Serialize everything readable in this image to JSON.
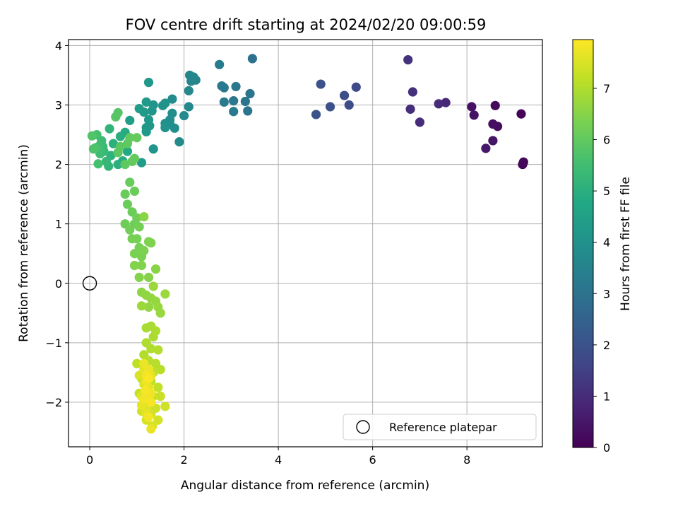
{
  "chart_data": {
    "type": "scatter",
    "title": "FOV centre drift starting at 2024/02/20 09:00:59",
    "xlabel": "Angular distance from reference (arcmin)",
    "ylabel": "Rotation from reference (arcmin)",
    "xlim": [
      -0.45,
      9.6
    ],
    "ylim": [
      -2.75,
      4.1
    ],
    "xticks": [
      0,
      2,
      4,
      6,
      8
    ],
    "yticks": [
      -2,
      -1,
      0,
      1,
      2,
      3,
      4
    ],
    "grid": true,
    "colorbar": {
      "label": "Hours from first FF file",
      "colormap": "viridis",
      "range": [
        0,
        7.95
      ],
      "ticks": [
        0,
        1,
        2,
        3,
        4,
        5,
        6,
        7
      ]
    },
    "legend": {
      "position": "lower-right",
      "entries": [
        "Reference platepar"
      ]
    },
    "reference_point": {
      "x": 0,
      "y": 0,
      "label": "Reference platepar"
    },
    "series": [
      {
        "columns": [
          "x",
          "y",
          "hours"
        ],
        "points": [
          [
            9.15,
            2.85,
            0.05
          ],
          [
            9.18,
            2.0,
            0.1
          ],
          [
            9.2,
            2.04,
            0.15
          ],
          [
            8.6,
            2.99,
            0.2
          ],
          [
            8.65,
            2.64,
            0.25
          ],
          [
            8.55,
            2.68,
            0.3
          ],
          [
            8.1,
            2.97,
            0.35
          ],
          [
            8.15,
            2.83,
            0.4
          ],
          [
            8.55,
            2.4,
            0.45
          ],
          [
            8.4,
            2.27,
            0.5
          ],
          [
            7.55,
            3.04,
            0.9
          ],
          [
            7.4,
            3.02,
            0.95
          ],
          [
            7.0,
            2.71,
            1.0
          ],
          [
            6.8,
            2.93,
            1.05
          ],
          [
            6.85,
            3.22,
            1.1
          ],
          [
            6.75,
            3.76,
            1.15
          ],
          [
            5.65,
            3.3,
            1.8
          ],
          [
            5.5,
            3.0,
            1.85
          ],
          [
            5.4,
            3.16,
            1.9
          ],
          [
            5.1,
            2.97,
            1.95
          ],
          [
            4.9,
            3.35,
            2.0
          ],
          [
            4.8,
            2.84,
            2.05
          ],
          [
            3.45,
            3.78,
            3.0
          ],
          [
            3.4,
            3.19,
            3.05
          ],
          [
            3.35,
            2.9,
            3.1
          ],
          [
            3.3,
            3.06,
            3.1
          ],
          [
            3.1,
            3.31,
            3.15
          ],
          [
            3.05,
            3.07,
            3.15
          ],
          [
            3.05,
            2.89,
            3.2
          ],
          [
            2.85,
            3.05,
            3.2
          ],
          [
            2.85,
            3.29,
            3.25
          ],
          [
            2.8,
            3.32,
            3.25
          ],
          [
            2.75,
            3.68,
            3.3
          ],
          [
            2.25,
            3.42,
            3.6
          ],
          [
            2.2,
            3.47,
            3.6
          ],
          [
            2.15,
            3.4,
            3.65
          ],
          [
            2.12,
            3.5,
            3.65
          ],
          [
            2.1,
            3.24,
            3.7
          ],
          [
            2.1,
            2.97,
            3.7
          ],
          [
            2.0,
            2.82,
            3.75
          ],
          [
            1.9,
            2.38,
            3.8
          ],
          [
            1.8,
            2.61,
            3.85
          ],
          [
            1.75,
            3.1,
            3.85
          ],
          [
            1.75,
            2.86,
            3.9
          ],
          [
            1.7,
            2.75,
            3.9
          ],
          [
            1.7,
            2.68,
            3.95
          ],
          [
            1.6,
            2.69,
            3.95
          ],
          [
            1.6,
            2.62,
            4.0
          ],
          [
            1.6,
            3.03,
            4.0
          ],
          [
            1.55,
            2.99,
            4.05
          ],
          [
            1.35,
            2.26,
            4.1
          ],
          [
            1.35,
            3.0,
            4.1
          ],
          [
            1.32,
            2.9,
            4.15
          ],
          [
            1.27,
            2.65,
            4.15
          ],
          [
            1.25,
            2.75,
            4.2
          ],
          [
            1.25,
            3.38,
            4.2
          ],
          [
            1.2,
            2.55,
            4.25
          ],
          [
            1.2,
            2.62,
            4.25
          ],
          [
            1.2,
            3.05,
            4.3
          ],
          [
            1.15,
            2.88,
            4.3
          ],
          [
            1.1,
            2.03,
            4.35
          ],
          [
            1.05,
            2.94,
            4.35
          ],
          [
            0.85,
            2.74,
            4.4
          ],
          [
            0.8,
            2.22,
            4.8
          ],
          [
            0.75,
            2.54,
            4.85
          ],
          [
            0.7,
            2.06,
            4.9
          ],
          [
            0.65,
            2.47,
            4.95
          ],
          [
            0.6,
            2.0,
            5.0
          ],
          [
            0.5,
            2.35,
            5.05
          ],
          [
            0.45,
            2.15,
            5.1
          ],
          [
            0.42,
            2.6,
            5.15
          ],
          [
            0.4,
            1.97,
            5.2
          ],
          [
            0.35,
            2.05,
            5.25
          ],
          [
            0.3,
            2.22,
            5.3
          ],
          [
            0.28,
            2.3,
            5.35
          ],
          [
            0.25,
            2.4,
            5.4
          ],
          [
            0.22,
            2.18,
            5.45
          ],
          [
            0.2,
            2.31,
            5.5
          ],
          [
            0.18,
            2.01,
            5.55
          ],
          [
            0.15,
            2.5,
            5.6
          ],
          [
            0.12,
            2.28,
            5.65
          ],
          [
            0.08,
            2.26,
            5.7
          ],
          [
            0.05,
            2.48,
            5.75
          ],
          [
            0.55,
            2.8,
            5.85
          ],
          [
            0.6,
            2.87,
            5.85
          ],
          [
            0.6,
            2.2,
            5.9
          ],
          [
            0.65,
            2.3,
            5.9
          ],
          [
            0.75,
            2.0,
            5.95
          ],
          [
            0.8,
            2.35,
            5.95
          ],
          [
            0.85,
            2.45,
            6.0
          ],
          [
            0.9,
            2.05,
            6.0
          ],
          [
            0.95,
            2.1,
            6.05
          ],
          [
            1.0,
            2.45,
            6.05
          ],
          [
            0.75,
            1.5,
            6.1
          ],
          [
            0.85,
            1.7,
            6.1
          ],
          [
            0.95,
            1.55,
            6.12
          ],
          [
            0.8,
            1.33,
            6.14
          ],
          [
            0.9,
            1.2,
            6.16
          ],
          [
            0.75,
            1.0,
            6.18
          ],
          [
            0.95,
            1.0,
            6.2
          ],
          [
            1.0,
            1.1,
            6.22
          ],
          [
            0.85,
            0.9,
            6.24
          ],
          [
            1.05,
            0.95,
            6.26
          ],
          [
            0.9,
            0.75,
            6.28
          ],
          [
            1.0,
            0.75,
            6.3
          ],
          [
            1.05,
            0.6,
            6.32
          ],
          [
            1.1,
            0.45,
            6.34
          ],
          [
            0.95,
            0.5,
            6.36
          ],
          [
            1.15,
            0.55,
            6.38
          ],
          [
            1.25,
            0.7,
            6.4
          ],
          [
            1.3,
            0.68,
            6.42
          ],
          [
            1.1,
            0.3,
            6.44
          ],
          [
            0.95,
            0.3,
            6.46
          ],
          [
            1.05,
            0.1,
            6.48
          ],
          [
            1.25,
            0.1,
            6.5
          ],
          [
            1.4,
            0.24,
            6.52
          ],
          [
            1.15,
            1.12,
            6.54
          ],
          [
            1.1,
            -0.15,
            6.6
          ],
          [
            1.2,
            -0.2,
            6.62
          ],
          [
            1.25,
            -0.4,
            6.64
          ],
          [
            1.3,
            -0.25,
            6.66
          ],
          [
            1.4,
            -0.3,
            6.68
          ],
          [
            1.45,
            -0.4,
            6.7
          ],
          [
            1.5,
            -0.5,
            6.72
          ],
          [
            1.6,
            -0.18,
            6.74
          ],
          [
            1.35,
            -0.05,
            6.76
          ],
          [
            1.1,
            -0.38,
            6.78
          ],
          [
            1.2,
            -0.75,
            6.9
          ],
          [
            1.3,
            -0.72,
            6.92
          ],
          [
            1.35,
            -0.9,
            6.94
          ],
          [
            1.4,
            -0.8,
            6.96
          ],
          [
            1.2,
            -1.0,
            6.98
          ],
          [
            1.3,
            -1.1,
            7.0
          ],
          [
            1.45,
            -1.12,
            7.02
          ],
          [
            1.15,
            -1.2,
            7.04
          ],
          [
            1.25,
            -1.3,
            7.06
          ],
          [
            1.4,
            -1.35,
            7.08
          ],
          [
            1.5,
            -1.45,
            7.1
          ],
          [
            1.2,
            -1.5,
            7.12
          ],
          [
            1.35,
            -1.5,
            7.14
          ],
          [
            1.0,
            -1.35,
            7.16
          ],
          [
            1.1,
            -1.6,
            7.18
          ],
          [
            1.3,
            -1.65,
            7.2
          ],
          [
            1.45,
            -1.75,
            7.22
          ],
          [
            1.05,
            -1.85,
            7.24
          ],
          [
            1.2,
            -1.8,
            7.26
          ],
          [
            1.35,
            -1.9,
            7.28
          ],
          [
            1.5,
            -1.9,
            7.3
          ],
          [
            1.15,
            -2.0,
            7.32
          ],
          [
            1.25,
            -2.05,
            7.34
          ],
          [
            1.4,
            -2.1,
            7.36
          ],
          [
            1.6,
            -2.07,
            7.38
          ],
          [
            1.1,
            -2.15,
            7.4
          ],
          [
            1.3,
            -2.2,
            7.42
          ],
          [
            1.45,
            -2.3,
            7.44
          ],
          [
            1.2,
            -2.3,
            7.46
          ],
          [
            1.33,
            -2.4,
            7.48
          ],
          [
            1.05,
            -1.55,
            7.5
          ],
          [
            1.15,
            -1.7,
            7.52
          ],
          [
            1.25,
            -1.95,
            7.54
          ],
          [
            1.1,
            -1.9,
            7.56
          ],
          [
            1.2,
            -2.1,
            7.58
          ],
          [
            1.15,
            -1.45,
            7.6
          ],
          [
            1.3,
            -1.55,
            7.62
          ],
          [
            1.25,
            -1.75,
            7.64
          ],
          [
            1.1,
            -2.05,
            7.66
          ],
          [
            1.2,
            -2.2,
            7.68
          ],
          [
            1.3,
            -2.45,
            7.7
          ],
          [
            1.15,
            -1.35,
            7.72
          ],
          [
            1.25,
            -1.45,
            7.74
          ],
          [
            1.2,
            -1.65,
            7.76
          ],
          [
            1.3,
            -1.85,
            7.78
          ],
          [
            1.15,
            -1.95,
            7.8
          ],
          [
            1.25,
            -2.25,
            7.82
          ],
          [
            1.2,
            -1.55,
            7.84
          ],
          [
            1.3,
            -2.0,
            7.86
          ],
          [
            1.18,
            -1.8,
            7.88
          ],
          [
            1.25,
            -1.6,
            7.9
          ]
        ]
      }
    ]
  }
}
